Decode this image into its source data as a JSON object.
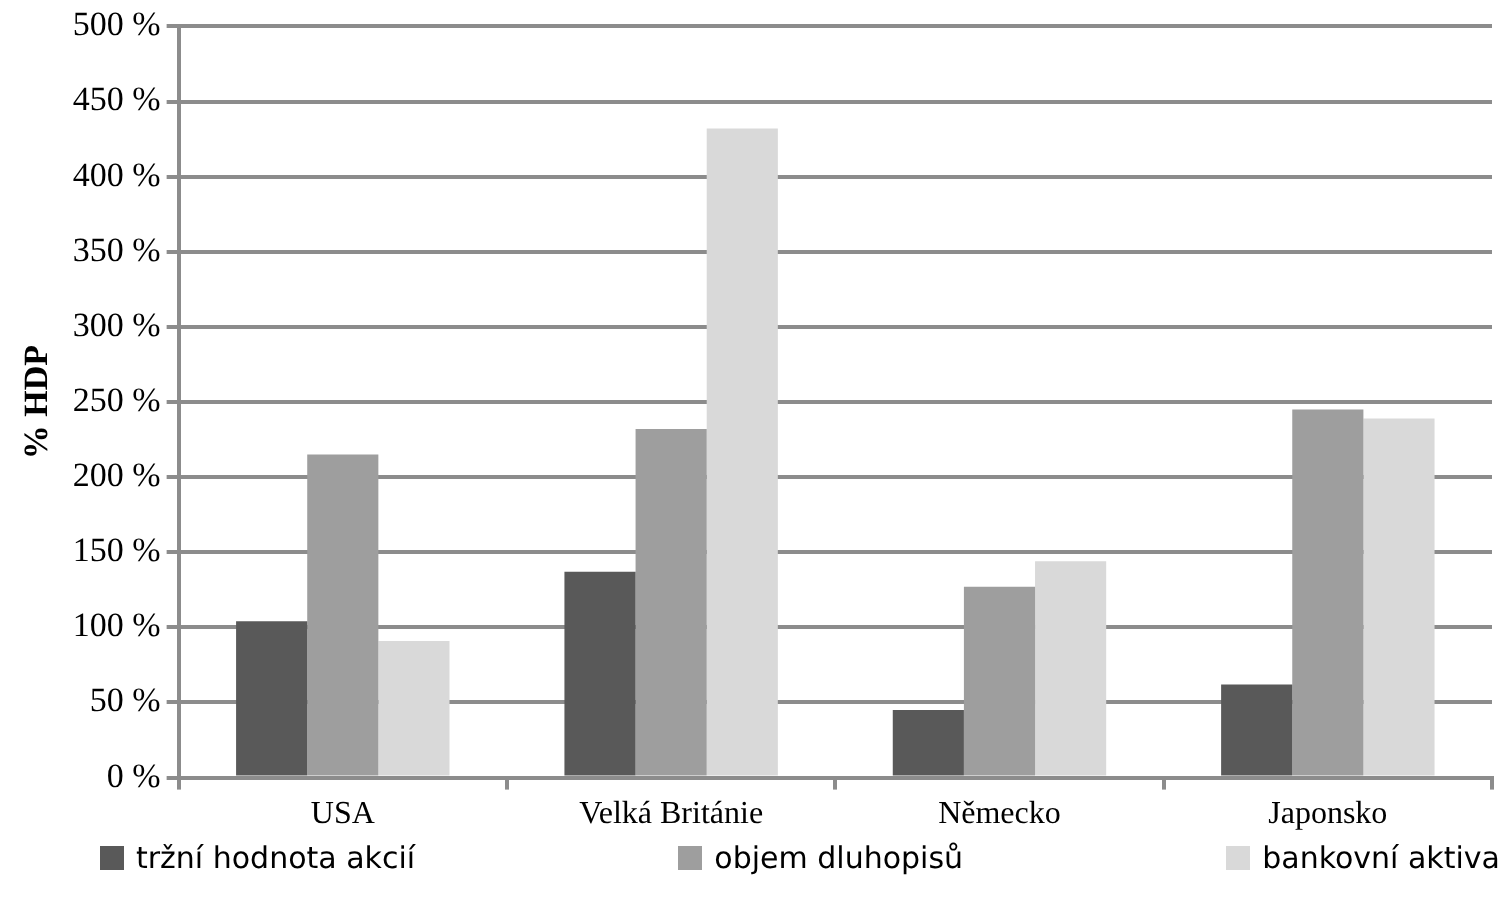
{
  "chart_data": {
    "type": "bar",
    "ylabel": "% HDP",
    "categories": [
      "USA",
      "Velká Británie",
      "Německo",
      "Japonsko"
    ],
    "series": [
      {
        "name": "tržní hodnota akcií",
        "color": "#595959",
        "values": [
          104,
          137,
          45,
          62
        ]
      },
      {
        "name": "objem dluhopisů",
        "color": "#9e9e9e",
        "values": [
          215,
          232,
          127,
          245
        ]
      },
      {
        "name": "bankovní aktiva",
        "color": "#d9d9d9",
        "values": [
          91,
          432,
          144,
          239
        ]
      }
    ],
    "ylim": [
      0,
      500
    ],
    "yticks": [
      {
        "value": 0,
        "label": "0 %"
      },
      {
        "value": 50,
        "label": "50 %"
      },
      {
        "value": 100,
        "label": "100 %"
      },
      {
        "value": 150,
        "label": "150 %"
      },
      {
        "value": 200,
        "label": "200 %"
      },
      {
        "value": 250,
        "label": "250 %"
      },
      {
        "value": 300,
        "label": "300 %"
      },
      {
        "value": 350,
        "label": "350 %"
      },
      {
        "value": 400,
        "label": "400 %"
      },
      {
        "value": 450,
        "label": "450 %"
      },
      {
        "value": 500,
        "label": "500 %"
      }
    ],
    "grid": "y",
    "legend": "bottom"
  }
}
